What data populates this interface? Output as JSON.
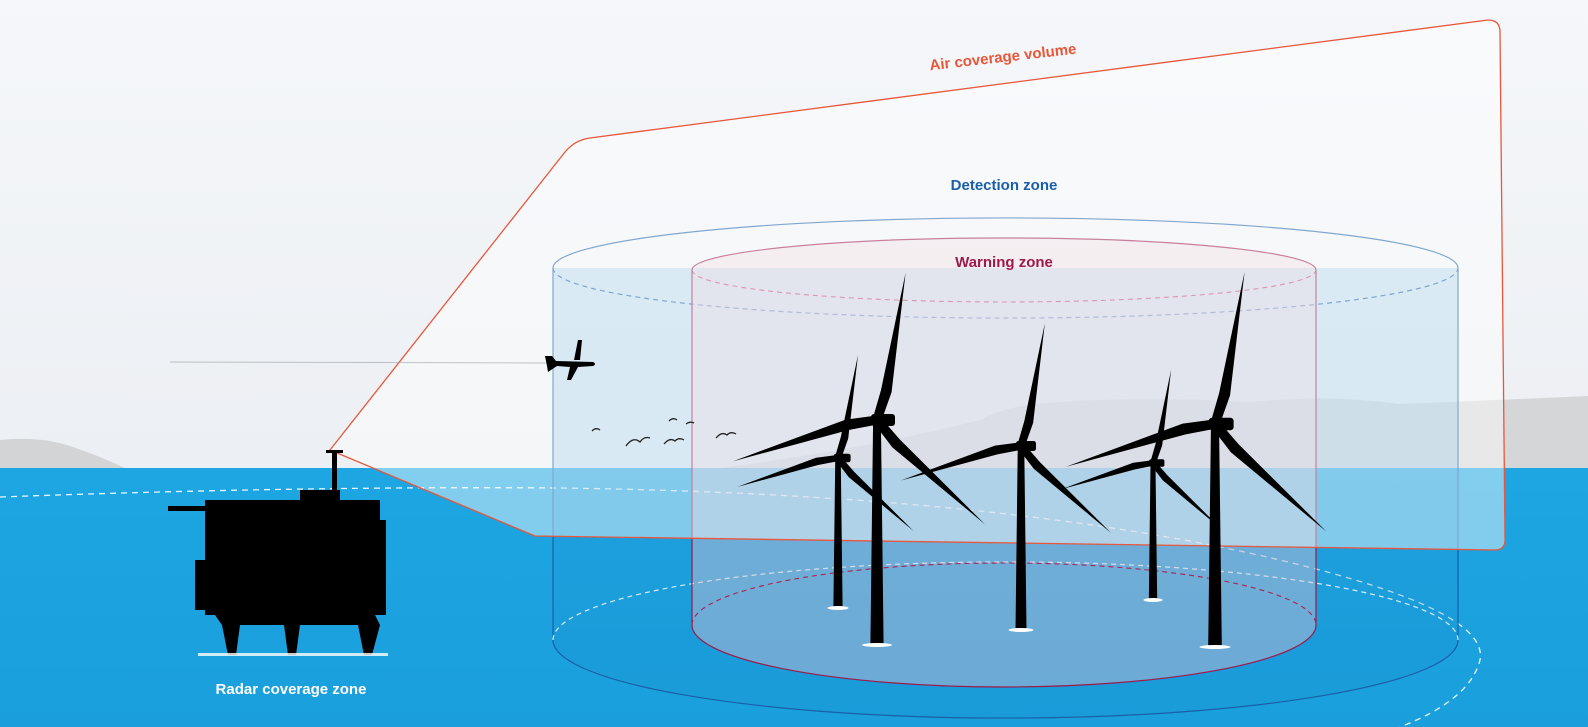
{
  "labels": {
    "air_coverage_volume": "Air coverage volume",
    "detection_zone": "Detection zone",
    "warning_zone": "Warning zone",
    "radar_coverage_zone": "Radar coverage zone"
  }
}
